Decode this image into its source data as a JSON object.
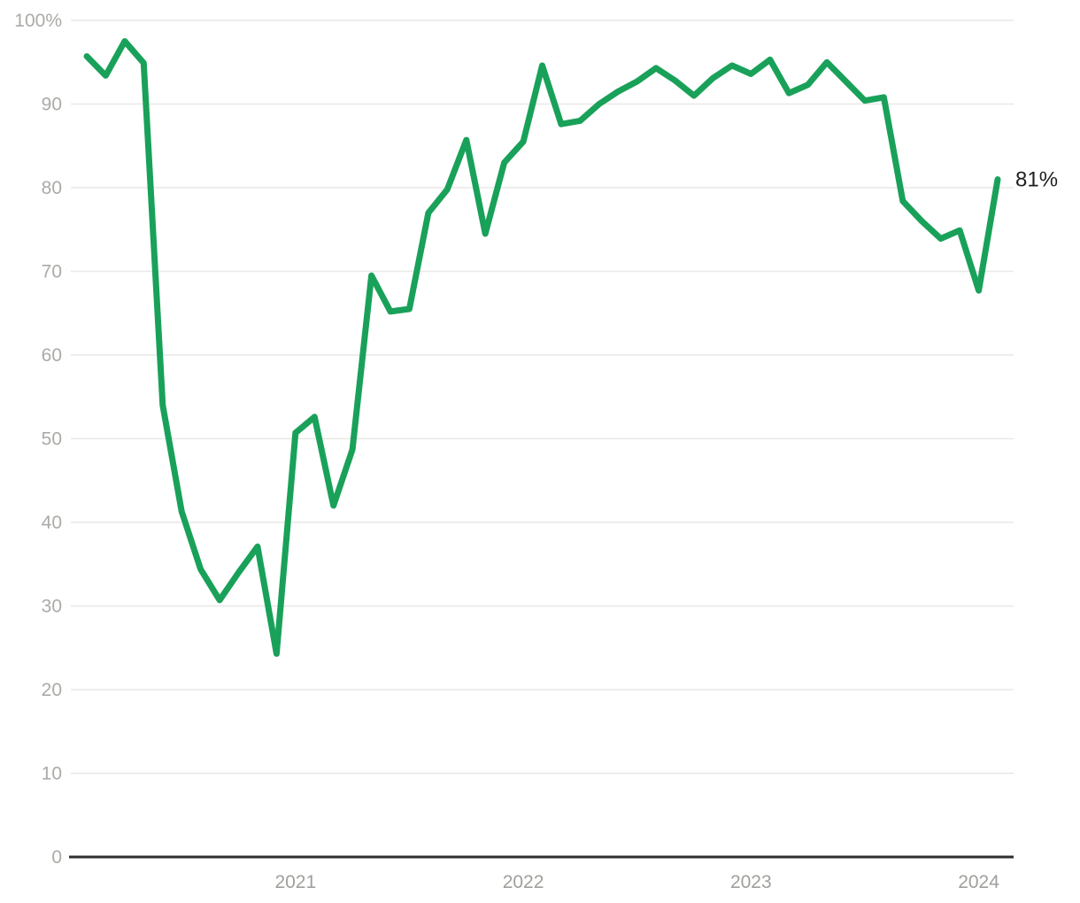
{
  "chart_data": {
    "type": "line",
    "unit": "%",
    "x": [
      "Feb 2020",
      "Mar 2020",
      "Apr 2020",
      "May 2020",
      "Jun 2020",
      "Jul 2020",
      "Aug 2020",
      "Sep 2020",
      "Oct 2020",
      "Nov 2020",
      "Dec 2020",
      "Jan 2021",
      "Feb 2021",
      "Mar 2021",
      "Apr 2021",
      "May 2021",
      "Jun 2021",
      "Jul 2021",
      "Aug 2021",
      "Sep 2021",
      "Oct 2021",
      "Nov 2021",
      "Dec 2021",
      "Jan 2022",
      "Feb 2022",
      "Mar 2022",
      "Apr 2022",
      "May 2022",
      "Jun 2022",
      "Jul 2022",
      "Aug 2022",
      "Sep 2022",
      "Oct 2022",
      "Nov 2022",
      "Dec 2022",
      "Jan 2023",
      "Feb 2023",
      "Mar 2023",
      "Apr 2023",
      "May 2023",
      "Jun 2023",
      "Jul 2023",
      "Aug 2023",
      "Sep 2023",
      "Oct 2023",
      "Nov 2023",
      "Dec 2023",
      "Jan 2024",
      "Feb 2024"
    ],
    "values": [
      95.7,
      93.4,
      97.5,
      94.9,
      54.0,
      41.3,
      34.4,
      30.7,
      34.0,
      37.1,
      24.3,
      50.7,
      52.6,
      42.0,
      48.7,
      69.5,
      65.2,
      65.5,
      77.0,
      79.8,
      85.7,
      74.5,
      83.0,
      85.5,
      94.6,
      87.6,
      88.0,
      90.0,
      91.5,
      92.7,
      94.3,
      92.8,
      91.0,
      93.1,
      94.6,
      93.6,
      95.3,
      91.3,
      92.3,
      95.0,
      92.7,
      90.4,
      90.8,
      78.4,
      76.0,
      73.9,
      74.9,
      67.7,
      81.0
    ],
    "end_label": "81%",
    "y_ticks": [
      0,
      10,
      20,
      30,
      40,
      50,
      60,
      70,
      80,
      90,
      100
    ],
    "y_tick_top_label": "100%",
    "x_tick_years": [
      "2021",
      "2022",
      "2023",
      "2024"
    ],
    "ylim": [
      0,
      100
    ],
    "grid": "horizontal",
    "legend": "none",
    "line_color": "#19a15a",
    "axis_color": "#2e2e2e",
    "grid_color": "#e8e8e6",
    "y_label_color": "#abaaa6",
    "x_label_color": "#9f9f9b",
    "end_label_color": "#1f1f1f"
  }
}
